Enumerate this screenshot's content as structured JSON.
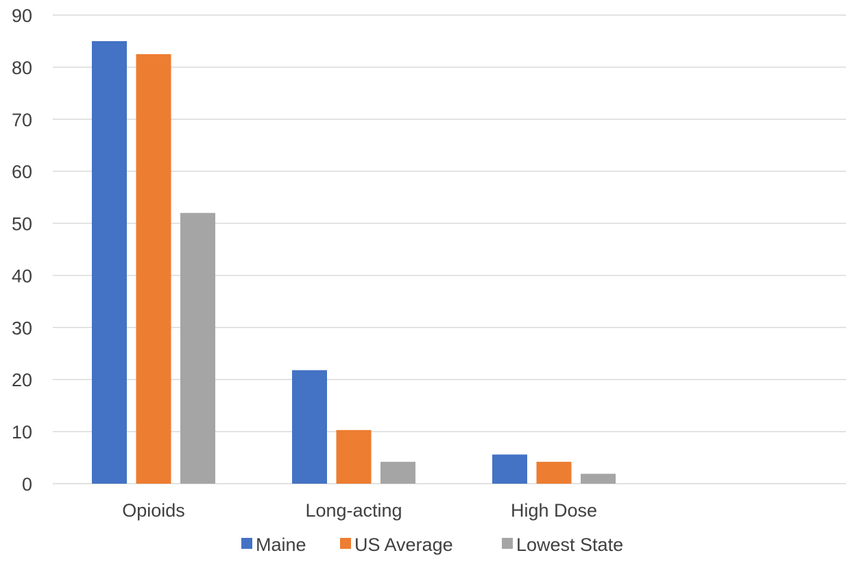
{
  "chart_data": {
    "type": "bar",
    "title": "",
    "xlabel": "",
    "ylabel": "",
    "categories": [
      "Opioids",
      "Long-acting",
      "High Dose",
      ""
    ],
    "series": [
      {
        "name": "Maine",
        "color": "#4472C4",
        "values": [
          85,
          21.8,
          5.6,
          null
        ]
      },
      {
        "name": "US Average",
        "color": "#ED7D31",
        "values": [
          82.5,
          10.3,
          4.2,
          null
        ]
      },
      {
        "name": "Lowest State",
        "color": "#A5A5A5",
        "values": [
          52,
          4.2,
          1.9,
          null
        ]
      }
    ],
    "ylim": [
      0,
      90
    ],
    "yticks": [
      0,
      10,
      20,
      30,
      40,
      50,
      60,
      70,
      80,
      90
    ],
    "grid": true,
    "legend_position": "bottom",
    "gridline_color": "#D9D9D9",
    "text_color": "#404040"
  }
}
